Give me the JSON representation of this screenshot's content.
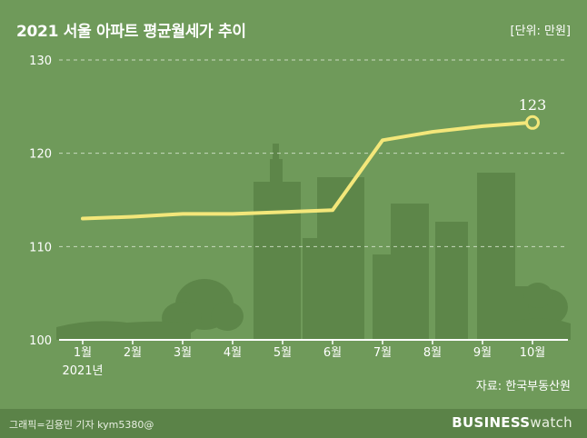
{
  "header": {
    "title": "2021 서울 아파트 평균월세가 추이",
    "unit": "[단위: 만원]"
  },
  "source": "자료: 한국부동산원",
  "footer": {
    "credit": "그래픽=김용민 기자 kym5380@",
    "brand_bold": "BUSINESS",
    "brand_light": "watch"
  },
  "colors": {
    "background": "#6f9a5a",
    "line": "#f3e77a",
    "grid": "#d8e6cf",
    "buildings": "#5d8649",
    "footer": "#5b8348"
  },
  "chart_data": {
    "type": "line",
    "title": "2021 서울 아파트 평균월세가 추이",
    "unit": "[단위: 만원]",
    "categories": [
      "1월",
      "2월",
      "3월",
      "4월",
      "5월",
      "6월",
      "7월",
      "8월",
      "9월",
      "10월"
    ],
    "x_sublabel": "2021년",
    "series": [
      {
        "values": [
          113.0,
          113.2,
          113.5,
          113.5,
          113.7,
          113.9,
          121.4,
          122.3,
          122.9,
          123.3
        ]
      }
    ],
    "y_ticks": [
      100,
      110,
      120,
      130
    ],
    "ylim": [
      100,
      130
    ],
    "grid": true,
    "annotation": {
      "index": 9,
      "text": "123"
    },
    "source": "자료: 한국부동산원"
  }
}
